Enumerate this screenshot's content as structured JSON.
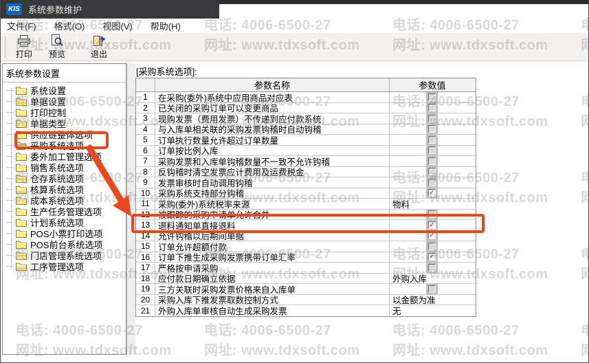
{
  "window": {
    "app_badge": "KIS",
    "title": "系统参数维护"
  },
  "menu": {
    "items": [
      {
        "label": "文件(F)"
      },
      {
        "label": "格式(O)"
      },
      {
        "label": "视图(V)"
      },
      {
        "label": "帮助(H)"
      }
    ]
  },
  "toolbar": {
    "buttons": [
      {
        "label": "打印",
        "icon": "printer-icon"
      },
      {
        "label": "预览",
        "icon": "preview-icon"
      },
      {
        "label": "退出",
        "icon": "exit-icon"
      }
    ]
  },
  "sidebar": {
    "title": "系统参数设置",
    "selected_index": 5,
    "items": [
      "系统设置",
      "单据设置",
      "打印控制",
      "单据类型",
      "供应链整体选项",
      "采购系统选项",
      "委外加工管理选项",
      "销售系统选项",
      "仓存系统选项",
      "核算系统选项",
      "成本系统选项",
      "生产任务管理选项",
      "计划系统选项",
      "POS小票打印选项",
      "POS前台系统选项",
      "门店管理系统选项",
      "工序管理选项"
    ]
  },
  "content": {
    "section_label": "[采购系统选项]:",
    "table": {
      "headers": {
        "name": "参数名称",
        "value": "参数值"
      },
      "rows": [
        {
          "num": "1",
          "name": "在采购(委外)系统中应用商品对应表",
          "type": "checkbox",
          "checked": false
        },
        {
          "num": "2",
          "name": "已关闭的采购订单可以变更商品",
          "type": "checkbox",
          "checked": false
        },
        {
          "num": "3",
          "name": "现购发票（费用发票）不传递到应付款系统",
          "type": "checkbox",
          "checked": false
        },
        {
          "num": "4",
          "name": "与入库单相关联的采购发票钩稽时自动钩稽",
          "type": "checkbox",
          "checked": false
        },
        {
          "num": "5",
          "name": "订单执行数量允许超过订单数量",
          "type": "checkbox",
          "checked": false
        },
        {
          "num": "6",
          "name": "订单按比例入库",
          "type": "checkbox",
          "checked": false
        },
        {
          "num": "7",
          "name": "采购发票和入库单钩稽数量不一致不允许钩稽",
          "type": "checkbox",
          "checked": false
        },
        {
          "num": "8",
          "name": "反钩稽时清空发票应计费用及运费税金",
          "type": "checkbox",
          "checked": false
        },
        {
          "num": "9",
          "name": "发票审核时自动调用钩稽",
          "type": "checkbox",
          "checked": false
        },
        {
          "num": "10",
          "name": "采购系统支持部分钩稽",
          "type": "checkbox",
          "checked": true
        },
        {
          "num": "11",
          "name": "采购(委外)系统税率来源",
          "type": "text",
          "value": "物料"
        },
        {
          "num": "12",
          "name": "被跟踪的采购申请单允许合并",
          "type": "checkbox",
          "checked": false
        },
        {
          "num": "13",
          "name": "退料通知单直接退料",
          "type": "checkbox",
          "checked": true
        },
        {
          "num": "14",
          "name": "允许钩稽以后期间单据",
          "type": "checkbox",
          "checked": true
        },
        {
          "num": "15",
          "name": "订单允许超额付款",
          "type": "checkbox",
          "checked": false
        },
        {
          "num": "16",
          "name": "订单下推生成采购发票携带订单汇率",
          "type": "checkbox",
          "checked": true
        },
        {
          "num": "17",
          "name": "严格按申请采购",
          "type": "checkbox",
          "checked": false
        },
        {
          "num": "18",
          "name": "应付款日期确立依据",
          "type": "text",
          "value": "外购入库"
        },
        {
          "num": "19",
          "name": "三方关联时采购发票价格来自入库单",
          "type": "checkbox",
          "checked": false
        },
        {
          "num": "20",
          "name": "采购入库下推发票取数控制方式",
          "type": "text",
          "value": "以金额为准"
        },
        {
          "num": "21",
          "name": "外购入库单审核自动生成采购发票",
          "type": "text",
          "value": "无"
        }
      ]
    }
  },
  "watermark": {
    "line1": "电话: 4006-6500-27",
    "line2": "网址: www.tdxsoft.com"
  },
  "annotations": {
    "color": "#e8481c",
    "highlighted_tree_item": "采购系统选项",
    "highlighted_row_num": "13",
    "check_color": "#c81c1c"
  }
}
